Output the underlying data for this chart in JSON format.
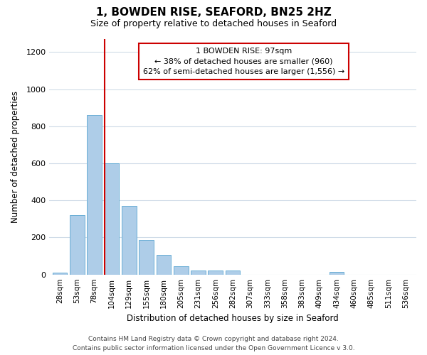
{
  "title": "1, BOWDEN RISE, SEAFORD, BN25 2HZ",
  "subtitle": "Size of property relative to detached houses in Seaford",
  "xlabel": "Distribution of detached houses by size in Seaford",
  "ylabel": "Number of detached properties",
  "bar_color": "#aecde8",
  "bar_edge_color": "#6aaed6",
  "categories": [
    "28sqm",
    "53sqm",
    "78sqm",
    "104sqm",
    "129sqm",
    "155sqm",
    "180sqm",
    "205sqm",
    "231sqm",
    "256sqm",
    "282sqm",
    "307sqm",
    "333sqm",
    "358sqm",
    "383sqm",
    "409sqm",
    "434sqm",
    "460sqm",
    "485sqm",
    "511sqm",
    "536sqm"
  ],
  "values": [
    10,
    320,
    860,
    600,
    370,
    185,
    105,
    45,
    20,
    20,
    20,
    0,
    0,
    0,
    0,
    0,
    15,
    0,
    0,
    0,
    0
  ],
  "ylim": [
    0,
    1270
  ],
  "yticks": [
    0,
    200,
    400,
    600,
    800,
    1000,
    1200
  ],
  "property_line_color": "#cc0000",
  "property_line_xindex": 3,
  "annotation_title": "1 BOWDEN RISE: 97sqm",
  "annotation_line1": "← 38% of detached houses are smaller (960)",
  "annotation_line2": "62% of semi-detached houses are larger (1,556) →",
  "annotation_box_color": "#ffffff",
  "annotation_box_edge": "#cc0000",
  "footer1": "Contains HM Land Registry data © Crown copyright and database right 2024.",
  "footer2": "Contains public sector information licensed under the Open Government Licence v 3.0.",
  "background_color": "#ffffff",
  "grid_color": "#d0dce8"
}
